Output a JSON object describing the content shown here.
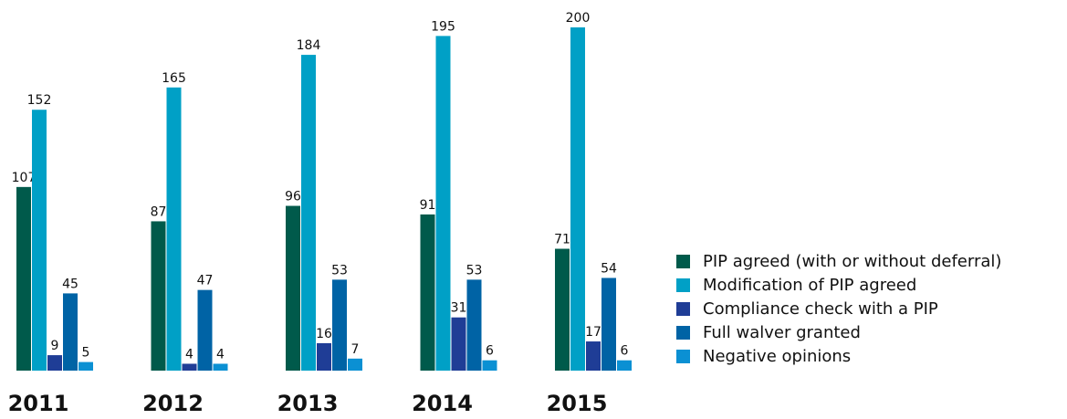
{
  "chart_data": {
    "type": "bar",
    "categories": [
      "2011",
      "2012",
      "2013",
      "2014",
      "2015"
    ],
    "series": [
      {
        "name": "PIP agreed (with or without deferral)",
        "color": "#005a4b",
        "values": [
          107,
          87,
          96,
          91,
          71
        ]
      },
      {
        "name": "Modification of PIP agreed",
        "color": "#00a0c6",
        "values": [
          152,
          165,
          184,
          195,
          200
        ]
      },
      {
        "name": "Compliance check with a PIP",
        "color": "#1f3d96",
        "values": [
          9,
          4,
          16,
          31,
          17
        ]
      },
      {
        "name": "Full walver granted",
        "color": "#0063a5",
        "values": [
          45,
          47,
          53,
          53,
          54
        ]
      },
      {
        "name": "Negative opinions",
        "color": "#0b90d3",
        "values": [
          5,
          4,
          7,
          6,
          6
        ]
      }
    ],
    "ylim": [
      0,
      200
    ],
    "legend": "right"
  }
}
